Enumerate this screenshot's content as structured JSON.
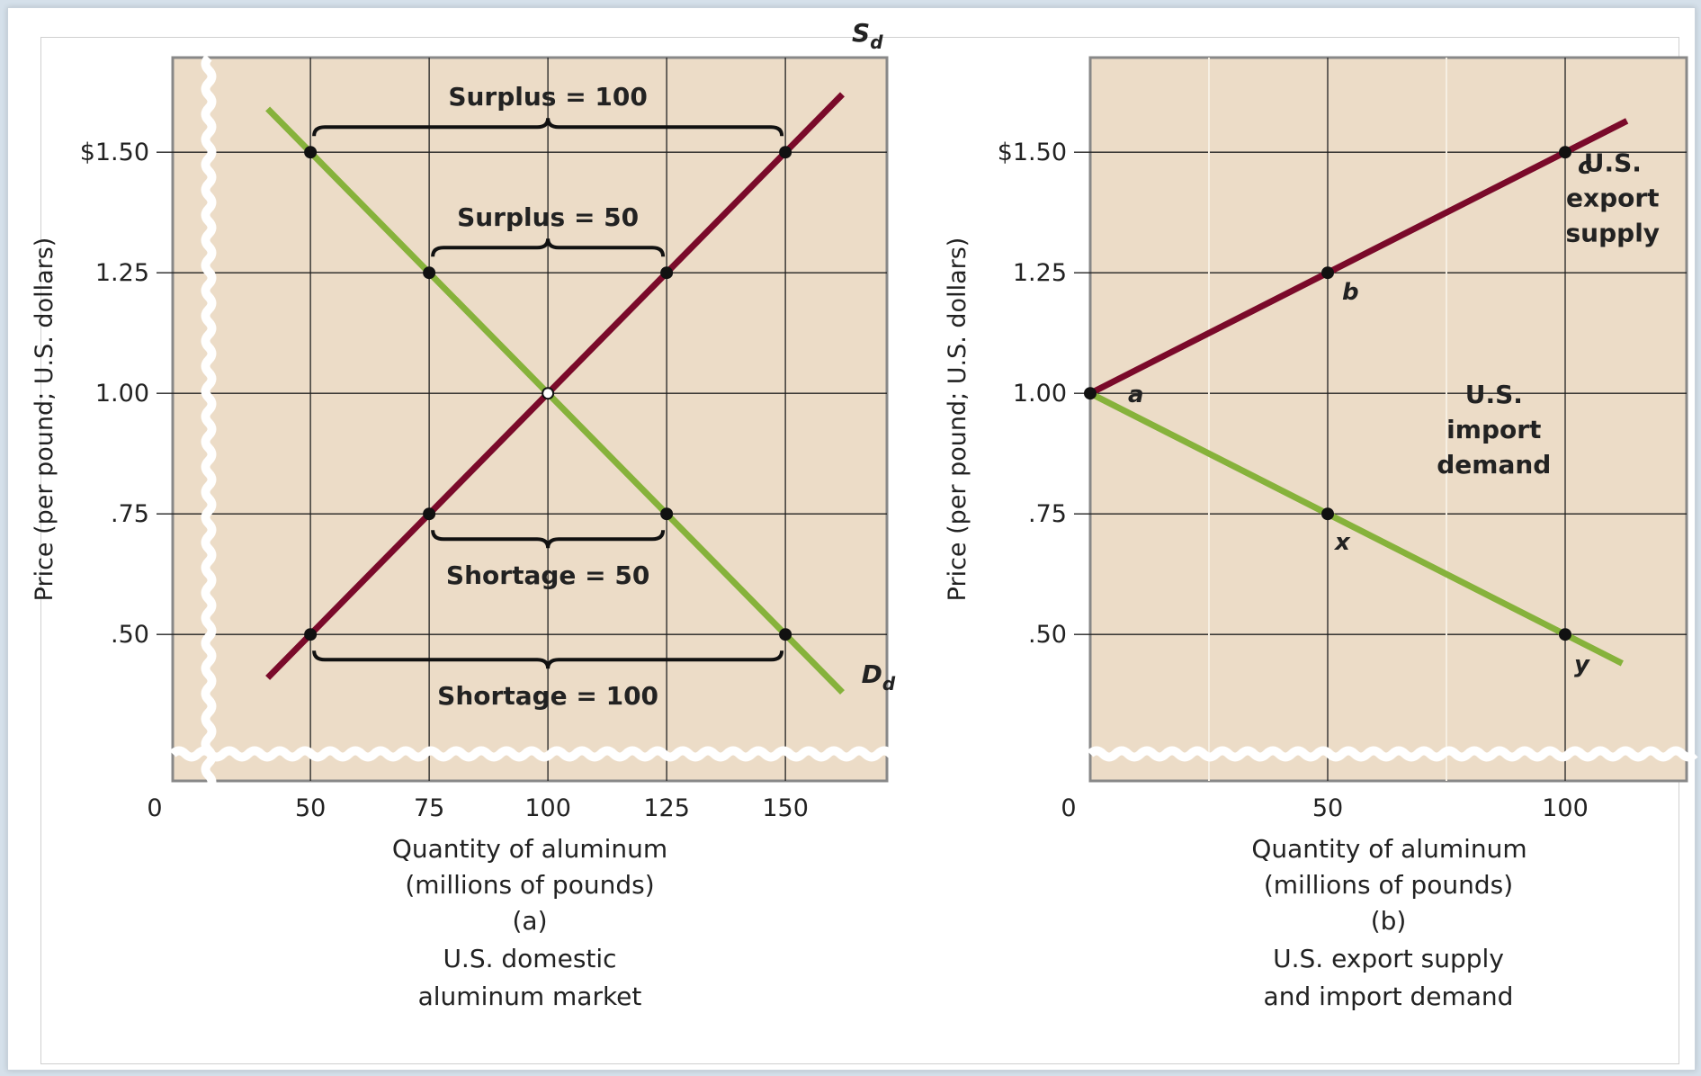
{
  "colors": {
    "plot_bg": "#ecdcc7",
    "supply": "#7a0a2a",
    "demand": "#86b23b",
    "grid": "#222222",
    "axis": "#888888"
  },
  "chart_data": [
    {
      "type": "line",
      "panel_label": "(a)",
      "caption": [
        "U.S. domestic",
        "aluminum market"
      ],
      "xlabel": [
        "Quantity of aluminum",
        "(millions of pounds)"
      ],
      "ylabel": "Price (per pound; U.S. dollars)",
      "x_origin_label": "0",
      "x_ticks": [
        50,
        75,
        100,
        125,
        150
      ],
      "x_tick_labels": [
        "50",
        "75",
        "100",
        "125",
        "150"
      ],
      "y_ticks": [
        0.5,
        0.75,
        1.0,
        1.25,
        1.5
      ],
      "y_tick_labels": [
        ".50",
        ".75",
        "1.00",
        "1.25",
        "$1.50"
      ],
      "xlim": [
        21,
        171
      ],
      "ylim": [
        0.34,
        1.82
      ],
      "grid": true,
      "axis_break": true,
      "series": [
        {
          "name": "S",
          "name_sub": "d",
          "color_key": "supply",
          "x": [
            41,
            162
          ],
          "y": [
            0.41,
            1.62
          ]
        },
        {
          "name": "D",
          "name_sub": "d",
          "color_key": "demand",
          "x": [
            41,
            162
          ],
          "y": [
            1.59,
            0.38
          ]
        }
      ],
      "points": [
        {
          "x": 50,
          "y": 1.5
        },
        {
          "x": 150,
          "y": 1.5
        },
        {
          "x": 75,
          "y": 1.25
        },
        {
          "x": 125,
          "y": 1.25
        },
        {
          "x": 75,
          "y": 0.75
        },
        {
          "x": 125,
          "y": 0.75
        },
        {
          "x": 50,
          "y": 0.5
        },
        {
          "x": 150,
          "y": 0.5
        }
      ],
      "equilibrium": {
        "x": 100,
        "y": 1.0
      },
      "braces": [
        {
          "label": "Surplus = 100",
          "x1": 50,
          "x2": 150,
          "y": 1.5,
          "side": "above"
        },
        {
          "label": "Surplus = 50",
          "x1": 75,
          "x2": 125,
          "y": 1.25,
          "side": "above"
        },
        {
          "label": "Shortage = 50",
          "x1": 75,
          "x2": 125,
          "y": 0.75,
          "side": "below"
        },
        {
          "label": "Shortage = 100",
          "x1": 50,
          "x2": 150,
          "y": 0.5,
          "side": "below"
        }
      ]
    },
    {
      "type": "line",
      "panel_label": "(b)",
      "caption": [
        "U.S. export supply",
        "and import demand"
      ],
      "xlabel": [
        "Quantity of aluminum",
        "(millions of pounds)"
      ],
      "ylabel": "Price (per pound; U.S. dollars)",
      "x_origin_label": "0",
      "x_ticks": [
        50,
        100
      ],
      "x_tick_labels": [
        "50",
        "100"
      ],
      "x_grid": [
        25,
        50,
        75,
        100
      ],
      "y_ticks": [
        0.5,
        0.75,
        1.0,
        1.25,
        1.5
      ],
      "y_tick_labels": [
        ".50",
        ".75",
        "1.00",
        "1.25",
        "$1.50"
      ],
      "xlim": [
        0,
        125
      ],
      "ylim": [
        0.34,
        1.82
      ],
      "grid": true,
      "axis_break": true,
      "series": [
        {
          "name": "U.S. export supply",
          "label_lines": [
            "U.S.",
            "export",
            "supply"
          ],
          "color_key": "supply",
          "x": [
            0,
            113
          ],
          "y": [
            1.0,
            1.565
          ]
        },
        {
          "name": "U.S. import demand",
          "label_lines": [
            "U.S.",
            "import",
            "demand"
          ],
          "color_key": "demand",
          "x": [
            0,
            112
          ],
          "y": [
            1.0,
            0.44
          ]
        }
      ],
      "points": [
        {
          "label": "a",
          "x": 0,
          "y": 1.0
        },
        {
          "label": "b",
          "x": 50,
          "y": 1.25
        },
        {
          "label": "c",
          "x": 100,
          "y": 1.5
        },
        {
          "label": "x",
          "x": 50,
          "y": 0.75
        },
        {
          "label": "y",
          "x": 100,
          "y": 0.5
        }
      ]
    }
  ]
}
